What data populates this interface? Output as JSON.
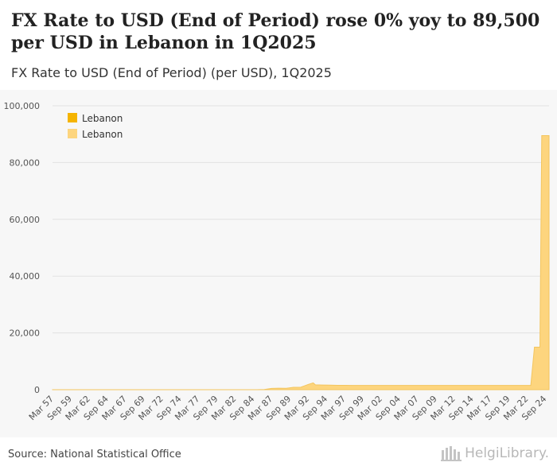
{
  "header": {
    "title": "FX Rate to USD (End of Period) rose 0% yoy to 89,500 per USD in Lebanon in 1Q2025",
    "subtitle": "FX Rate to USD (End of Period) (per USD), 1Q2025"
  },
  "footer": {
    "source": "Source: National Statistical Office",
    "brand": "HelgiLibrary."
  },
  "colors": {
    "series_dark": "#f5b400",
    "series_light": "#fdd57e",
    "plot_background": "#f7f7f7"
  },
  "chart_data": {
    "type": "area",
    "title": "FX Rate to USD (End of Period) (per USD), 1Q2025",
    "xlabel": "",
    "ylabel": "",
    "ylim": [
      0,
      100000
    ],
    "yticks": [
      0,
      20000,
      40000,
      60000,
      80000,
      100000
    ],
    "ytick_labels": [
      "0",
      "20,000",
      "40,000",
      "60,000",
      "80,000",
      "100,000"
    ],
    "xtick_labels": [
      "Mar 57",
      "Sep 59",
      "Mar 62",
      "Sep 64",
      "Mar 67",
      "Sep 69",
      "Mar 72",
      "Sep 74",
      "Mar 77",
      "Sep 79",
      "Mar 82",
      "Sep 84",
      "Mar 87",
      "Sep 89",
      "Mar 92",
      "Sep 94",
      "Mar 97",
      "Sep 99",
      "Mar 02",
      "Sep 04",
      "Mar 07",
      "Sep 09",
      "Mar 12",
      "Sep 14",
      "Mar 17",
      "Sep 19",
      "Mar 22",
      "Sep 24"
    ],
    "legend": {
      "position": "top-left",
      "entries": [
        "Lebanon",
        "Lebanon"
      ]
    },
    "x_start": 1957.0,
    "x_end": 2025.0,
    "series": [
      {
        "name": "Lebanon",
        "role": "highlight",
        "points": [
          [
            2025.0,
            89500
          ]
        ]
      },
      {
        "name": "Lebanon",
        "role": "history",
        "points": [
          [
            1957.0,
            3
          ],
          [
            1972.0,
            3
          ],
          [
            1978.0,
            3
          ],
          [
            1983.0,
            4
          ],
          [
            1985.0,
            18
          ],
          [
            1986.0,
            87
          ],
          [
            1987.0,
            455
          ],
          [
            1988.0,
            530
          ],
          [
            1989.0,
            505
          ],
          [
            1990.0,
            842
          ],
          [
            1991.0,
            880
          ],
          [
            1992.0,
            1838
          ],
          [
            1992.7,
            2400
          ],
          [
            1993.0,
            1711
          ],
          [
            1994.0,
            1647
          ],
          [
            1995.0,
            1596
          ],
          [
            1996.0,
            1552
          ],
          [
            1997.0,
            1527
          ],
          [
            1998.0,
            1508
          ],
          [
            1999.0,
            1507.5
          ],
          [
            2019.0,
            1507.5
          ],
          [
            2022.5,
            1507.5
          ],
          [
            2023.0,
            15000
          ],
          [
            2023.75,
            15000
          ],
          [
            2024.0,
            89500
          ],
          [
            2025.0,
            89500
          ]
        ]
      }
    ]
  }
}
